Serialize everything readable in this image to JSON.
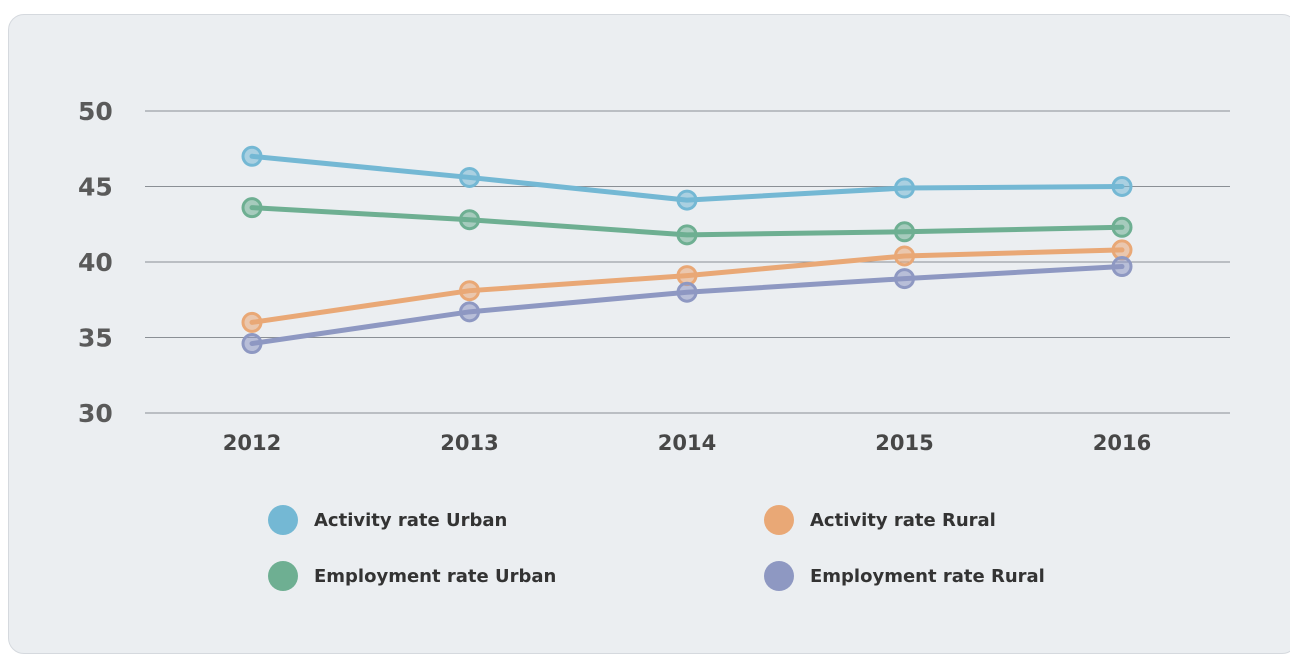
{
  "chart_data": {
    "type": "line",
    "title": "",
    "xlabel": "",
    "ylabel": "",
    "categories": [
      "2012",
      "2013",
      "2014",
      "2015",
      "2016"
    ],
    "ylim": [
      30,
      50
    ],
    "yticks": [
      "30",
      "35",
      "40",
      "45",
      "50"
    ],
    "grid": true,
    "legend_position": "bottom",
    "series": [
      {
        "name": "Activity rate Urban",
        "color": "#74b8d4",
        "values": [
          47.0,
          45.6,
          44.1,
          44.9,
          45.0
        ]
      },
      {
        "name": "Activity rate Rural",
        "color": "#e9a876",
        "values": [
          36.0,
          38.1,
          39.1,
          40.4,
          40.8
        ]
      },
      {
        "name": "Employment rate Urban",
        "color": "#6eaf92",
        "values": [
          43.6,
          42.8,
          41.8,
          42.0,
          42.3
        ]
      },
      {
        "name": "Employment rate Rural",
        "color": "#8e98c2",
        "values": [
          34.6,
          36.7,
          38.0,
          38.9,
          39.7
        ]
      }
    ]
  }
}
